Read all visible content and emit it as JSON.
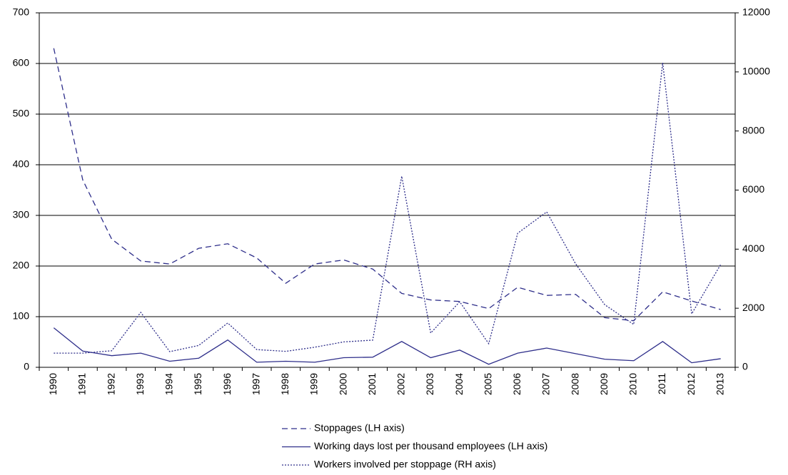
{
  "chart_data": {
    "type": "line",
    "categories": [
      "1990",
      "1991",
      "1992",
      "1993",
      "1994",
      "1995",
      "1996",
      "1997",
      "1998",
      "1999",
      "2000",
      "2001",
      "2002",
      "2003",
      "2004",
      "2005",
      "2006",
      "2007",
      "2008",
      "2009",
      "2010",
      "2011",
      "2012",
      "2013"
    ],
    "series": [
      {
        "name": "Stoppages (LH axis)",
        "color": "#2e2e8a",
        "dash": "dashed",
        "values": [
          630,
          370,
          253,
          210,
          204,
          235,
          244,
          216,
          166,
          204,
          212,
          194,
          146,
          133,
          130,
          116,
          158,
          142,
          144,
          98,
          92,
          149,
          131,
          114
        ]
      },
      {
        "name": "Working days lost per thousand employees (LH axis)",
        "color": "#2e2e8a",
        "dash": "solid",
        "values": [
          78,
          32,
          23,
          28,
          12,
          18,
          54,
          10,
          12,
          10,
          19,
          20,
          51,
          19,
          34,
          6,
          28,
          38,
          27,
          16,
          13,
          51,
          9,
          17
        ]
      },
      {
        "name": "Workers involved per stoppage (RH axis)",
        "color": "#2e2e8a",
        "dash": "dotted",
        "axis": "y2",
        "values": [
          480,
          480,
          560,
          1860,
          530,
          740,
          1500,
          600,
          540,
          680,
          860,
          920,
          6470,
          1160,
          2220,
          800,
          4540,
          5260,
          3500,
          2120,
          1450,
          10310,
          1810,
          3480
        ]
      }
    ],
    "ylim": [
      0,
      700
    ],
    "yticks": [
      0,
      100,
      200,
      300,
      400,
      500,
      600,
      700
    ],
    "y2lim": [
      0,
      12000
    ],
    "y2ticks": [
      0,
      2000,
      4000,
      6000,
      8000,
      10000,
      12000
    ],
    "grid": true,
    "legend": "bottom"
  }
}
